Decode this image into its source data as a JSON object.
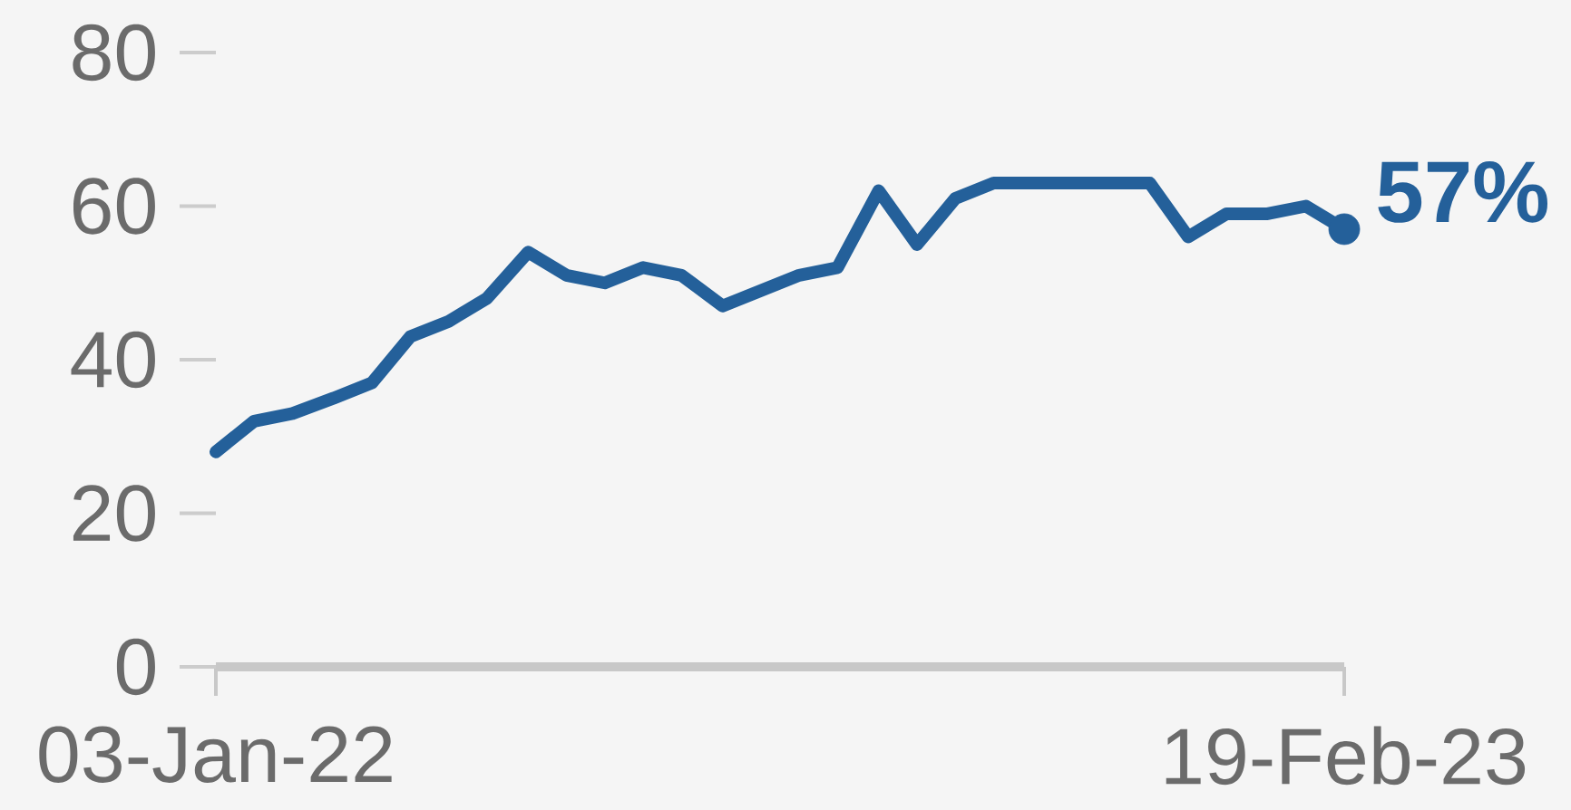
{
  "chart_data": {
    "type": "line",
    "x": [
      "2022-01-03",
      "2022-01-17",
      "2022-01-31",
      "2022-02-15",
      "2022-03-01",
      "2022-03-15",
      "2022-03-29",
      "2022-04-12",
      "2022-04-27",
      "2022-05-11",
      "2022-05-25",
      "2022-06-08",
      "2022-06-22",
      "2022-07-07",
      "2022-07-21",
      "2022-08-04",
      "2022-08-18",
      "2022-09-02",
      "2022-09-16",
      "2022-09-30",
      "2022-10-14",
      "2022-10-28",
      "2022-11-12",
      "2022-11-26",
      "2022-12-10",
      "2022-12-24",
      "2023-01-07",
      "2023-01-22",
      "2023-02-05",
      "2023-02-19"
    ],
    "series": [
      {
        "color": "#24609a",
        "values": [
          28,
          32,
          33,
          35,
          37,
          43,
          45,
          48,
          54,
          51,
          50,
          52,
          51,
          47,
          49,
          51,
          52,
          62,
          55,
          61,
          63,
          63,
          63,
          63,
          63,
          56,
          59,
          59,
          60,
          57
        ],
        "value_labels": [
          null,
          null,
          null,
          null,
          null,
          null,
          null,
          null,
          null,
          null,
          null,
          null,
          null,
          null,
          null,
          null,
          null,
          null,
          null,
          null,
          null,
          null,
          null,
          null,
          null,
          null,
          null,
          null,
          null,
          "57%"
        ]
      }
    ],
    "xlim": [
      "2022-01-03",
      "2023-02-19"
    ],
    "xticks": [
      {
        "value": "2022-01-03",
        "label": "03-Jan-22"
      },
      {
        "value": "2023-02-19",
        "label": "19-Feb-23"
      }
    ],
    "ylim": [
      0,
      80
    ],
    "yticks": [
      0,
      20,
      40,
      60,
      80
    ],
    "line_style": "solid"
  }
}
